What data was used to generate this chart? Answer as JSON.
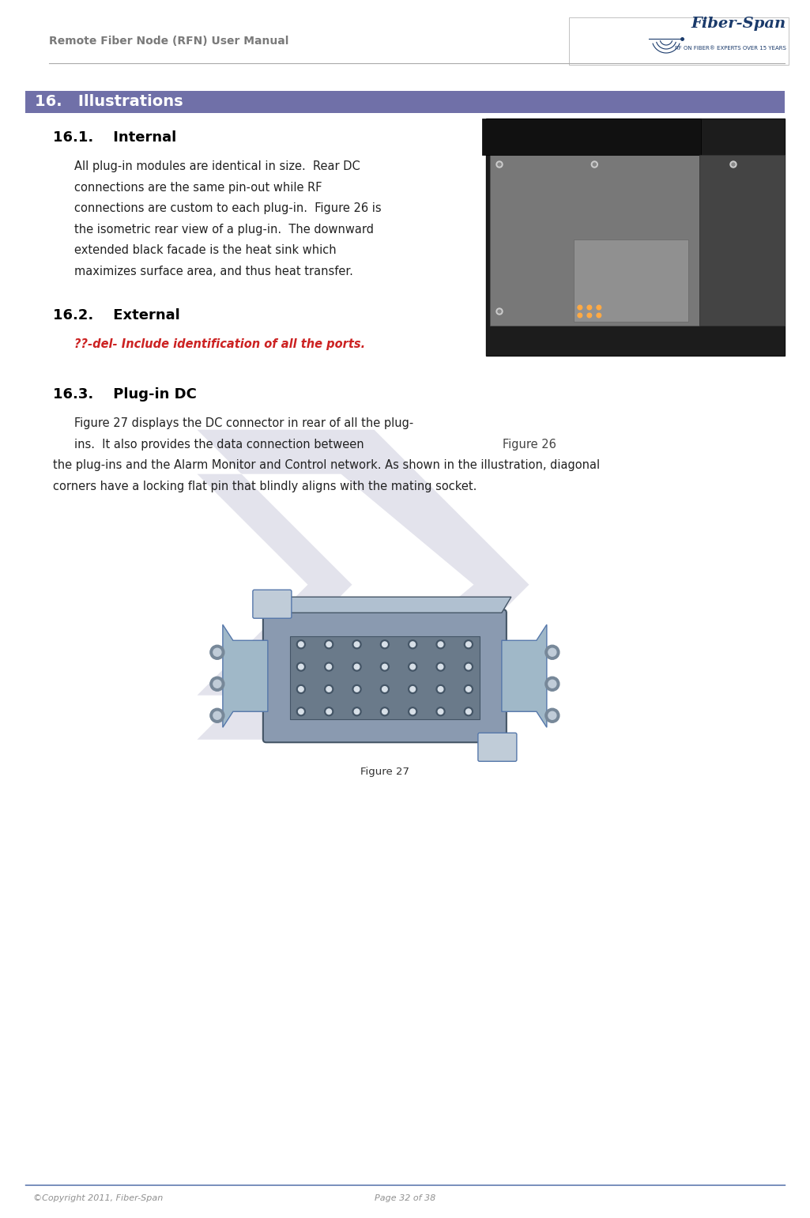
{
  "page_width": 10.25,
  "page_height": 15.41,
  "bg_color": "#ffffff",
  "header_text": "Remote Fiber Node (RFN) User Manual",
  "header_color": "#7a7a7a",
  "header_line_color": "#aaaaaa",
  "logo_text": "Fiber-Span",
  "logo_subtext": "RF ON FIBER® EXPERTS OVER 15 YEARS",
  "logo_color": "#1a3a6b",
  "section_header_bg": "#7070a8",
  "section_header_text": "16.   Illustrations",
  "section_header_text_color": "#ffffff",
  "footer_line_color": "#4060a0",
  "footer_left": "©Copyright 2011, Fiber-Span",
  "footer_right": "Page 32 of 38",
  "footer_color": "#909090",
  "draft_color": "#ccccdd",
  "draft_alpha": 0.55,
  "subsection_161_title": "16.1.    Internal",
  "subsection_161_color": "#000000",
  "subsection_161_text_lines": [
    "All plug-in modules are identical in size.  Rear DC",
    "connections are the same pin-out while RF",
    "connections are custom to each plug-in.  Figure 26 is",
    "the isometric rear view of a plug-in.  The downward",
    "extended black facade is the heat sink which",
    "maximizes surface area, and thus heat transfer."
  ],
  "subsection_162_title": "16.2.    External",
  "subsection_162_text": "??-del- Include identification of all the ports.",
  "subsection_162_text_color": "#cc2222",
  "subsection_163_title": "16.3.    Plug-in DC",
  "subsection_163_text_line1": "Figure 27 displays the DC connector in rear of all the plug-",
  "subsection_163_text_line2": "ins.  It also provides the data connection between",
  "figure26_caption": "Figure 26",
  "subsection_163_text_line3": "the plug-ins and the Alarm Monitor and Control network. As shown in the illustration, diagonal",
  "subsection_163_text_line4": "corners have a locking flat pin that blindly aligns with the mating socket.",
  "figure27_caption": "Figure 27",
  "body_font_size": 10.5,
  "subsection_title_font_size": 13,
  "section_header_font_size": 14
}
